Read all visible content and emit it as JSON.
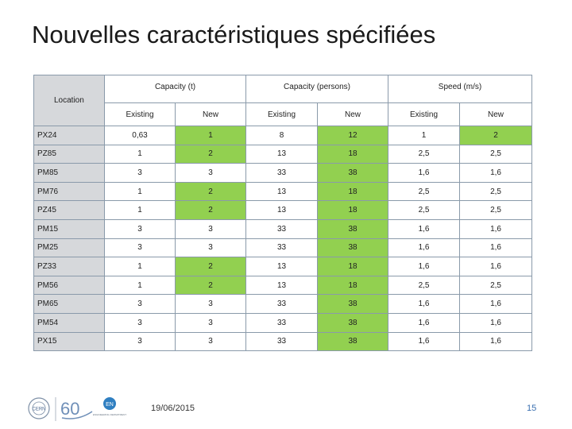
{
  "slide": {
    "title": "Nouvelles caractéristiques spécifiées",
    "date": "19/06/2015",
    "page_number": "15",
    "logos": {
      "cern_text": "CERN",
      "anniversary_text": "60",
      "dept_badge": "EN",
      "dept_text": "ENGINEERING DEPARTMENT"
    }
  },
  "table": {
    "location_header": "Location",
    "groups": [
      "Capacity (t)",
      "Capacity (persons)",
      "Speed (m/s)"
    ],
    "subheaders": [
      "Existing",
      "New",
      "Existing",
      "New",
      "Existing",
      "New"
    ],
    "highlight_color": "#92d050",
    "rows": [
      {
        "location": "PX24",
        "cells": [
          "0,63",
          "1",
          "8",
          "12",
          "1",
          "2"
        ],
        "highlight": [
          false,
          true,
          false,
          true,
          false,
          true
        ]
      },
      {
        "location": "PZ85",
        "cells": [
          "1",
          "2",
          "13",
          "18",
          "2,5",
          "2,5"
        ],
        "highlight": [
          false,
          true,
          false,
          true,
          false,
          false
        ]
      },
      {
        "location": "PM85",
        "cells": [
          "3",
          "3",
          "33",
          "38",
          "1,6",
          "1,6"
        ],
        "highlight": [
          false,
          false,
          false,
          true,
          false,
          false
        ]
      },
      {
        "location": "PM76",
        "cells": [
          "1",
          "2",
          "13",
          "18",
          "2,5",
          "2,5"
        ],
        "highlight": [
          false,
          true,
          false,
          true,
          false,
          false
        ]
      },
      {
        "location": "PZ45",
        "cells": [
          "1",
          "2",
          "13",
          "18",
          "2,5",
          "2,5"
        ],
        "highlight": [
          false,
          true,
          false,
          true,
          false,
          false
        ]
      },
      {
        "location": "PM15",
        "cells": [
          "3",
          "3",
          "33",
          "38",
          "1,6",
          "1,6"
        ],
        "highlight": [
          false,
          false,
          false,
          true,
          false,
          false
        ]
      },
      {
        "location": "PM25",
        "cells": [
          "3",
          "3",
          "33",
          "38",
          "1,6",
          "1,6"
        ],
        "highlight": [
          false,
          false,
          false,
          true,
          false,
          false
        ]
      },
      {
        "location": "PZ33",
        "cells": [
          "1",
          "2",
          "13",
          "18",
          "1,6",
          "1,6"
        ],
        "highlight": [
          false,
          true,
          false,
          true,
          false,
          false
        ]
      },
      {
        "location": "PM56",
        "cells": [
          "1",
          "2",
          "13",
          "18",
          "2,5",
          "2,5"
        ],
        "highlight": [
          false,
          true,
          false,
          true,
          false,
          false
        ]
      },
      {
        "location": "PM65",
        "cells": [
          "3",
          "3",
          "33",
          "38",
          "1,6",
          "1,6"
        ],
        "highlight": [
          false,
          false,
          false,
          true,
          false,
          false
        ]
      },
      {
        "location": "PM54",
        "cells": [
          "3",
          "3",
          "33",
          "38",
          "1,6",
          "1,6"
        ],
        "highlight": [
          false,
          false,
          false,
          true,
          false,
          false
        ]
      },
      {
        "location": "PX15",
        "cells": [
          "3",
          "3",
          "33",
          "38",
          "1,6",
          "1,6"
        ],
        "highlight": [
          false,
          false,
          false,
          true,
          false,
          false
        ]
      }
    ]
  }
}
